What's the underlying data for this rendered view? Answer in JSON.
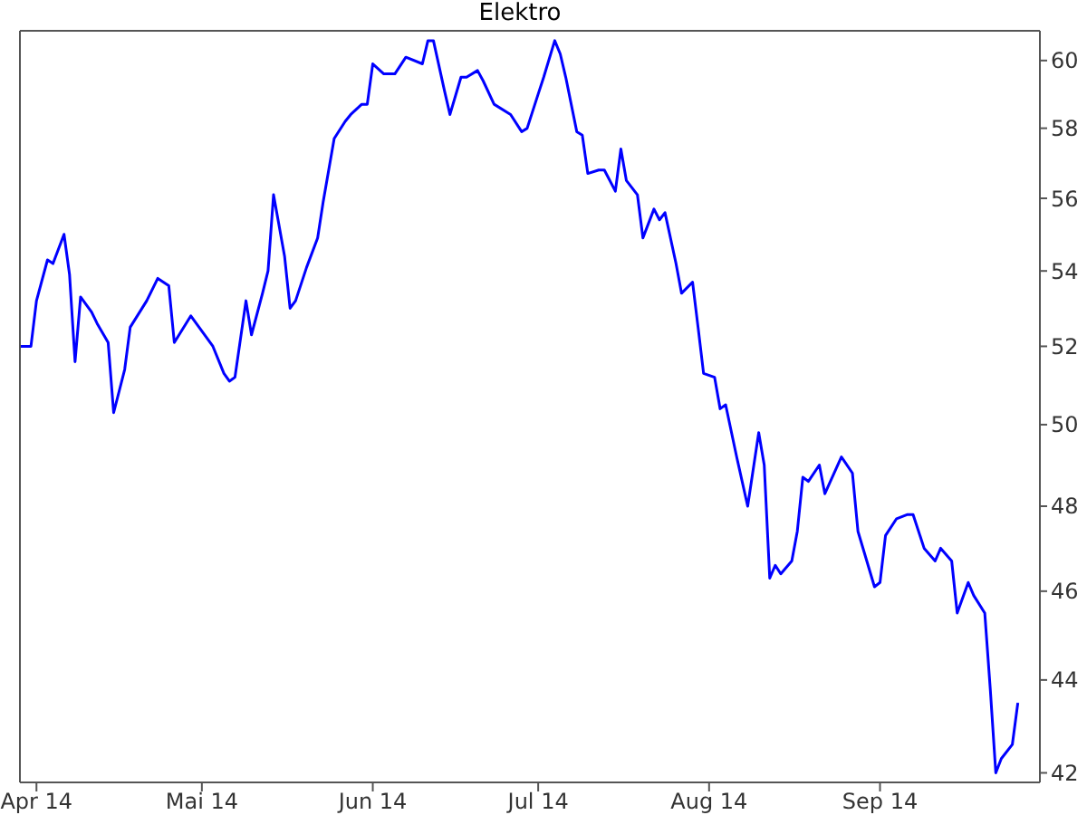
{
  "chart_data": {
    "type": "line",
    "title": "Elektro",
    "x": [
      "2014-03-29",
      "2014-03-31",
      "2014-04-01",
      "2014-04-03",
      "2014-04-04",
      "2014-04-06",
      "2014-04-07",
      "2014-04-08",
      "2014-04-09",
      "2014-04-11",
      "2014-04-12",
      "2014-04-14",
      "2014-04-15",
      "2014-04-17",
      "2014-04-18",
      "2014-04-21",
      "2014-04-23",
      "2014-04-25",
      "2014-04-26",
      "2014-04-29",
      "2014-05-03",
      "2014-05-05",
      "2014-05-06",
      "2014-05-07",
      "2014-05-09",
      "2014-05-10",
      "2014-05-12",
      "2014-05-13",
      "2014-05-14",
      "2014-05-16",
      "2014-05-17",
      "2014-05-18",
      "2014-05-20",
      "2014-05-22",
      "2014-05-23",
      "2014-05-25",
      "2014-05-27",
      "2014-05-28",
      "2014-05-30",
      "2014-05-31",
      "2014-06-01",
      "2014-06-03",
      "2014-06-05",
      "2014-06-07",
      "2014-06-10",
      "2014-06-11",
      "2014-06-12",
      "2014-06-14",
      "2014-06-15",
      "2014-06-17",
      "2014-06-18",
      "2014-06-20",
      "2014-06-21",
      "2014-06-23",
      "2014-06-26",
      "2014-06-28",
      "2014-06-29",
      "2014-07-01",
      "2014-07-02",
      "2014-07-04",
      "2014-07-05",
      "2014-07-06",
      "2014-07-08",
      "2014-07-09",
      "2014-07-10",
      "2014-07-12",
      "2014-07-13",
      "2014-07-15",
      "2014-07-16",
      "2014-07-17",
      "2014-07-19",
      "2014-07-20",
      "2014-07-22",
      "2014-07-23",
      "2014-07-24",
      "2014-07-26",
      "2014-07-27",
      "2014-07-29",
      "2014-07-30",
      "2014-07-31",
      "2014-08-02",
      "2014-08-03",
      "2014-08-04",
      "2014-08-06",
      "2014-08-08",
      "2014-08-10",
      "2014-08-11",
      "2014-08-12",
      "2014-08-13",
      "2014-08-14",
      "2014-08-16",
      "2014-08-17",
      "2014-08-18",
      "2014-08-19",
      "2014-08-21",
      "2014-08-22",
      "2014-08-25",
      "2014-08-27",
      "2014-08-28",
      "2014-08-31",
      "2014-09-01",
      "2014-09-02",
      "2014-09-04",
      "2014-09-06",
      "2014-09-07",
      "2014-09-09",
      "2014-09-11",
      "2014-09-12",
      "2014-09-14",
      "2014-09-15",
      "2014-09-17",
      "2014-09-18",
      "2014-09-20",
      "2014-09-21",
      "2014-09-22",
      "2014-09-23",
      "2014-09-25",
      "2014-09-26"
    ],
    "series": [
      {
        "color": "#0000ff",
        "values": [
          52.0,
          52.0,
          53.2,
          54.3,
          54.2,
          55.0,
          53.9,
          51.6,
          53.3,
          52.9,
          52.6,
          52.1,
          50.3,
          51.4,
          52.5,
          53.2,
          53.8,
          53.6,
          52.1,
          52.8,
          52.0,
          51.3,
          51.1,
          51.2,
          53.2,
          52.3,
          53.4,
          54.0,
          56.1,
          54.4,
          53.0,
          53.2,
          54.1,
          54.9,
          55.9,
          57.7,
          58.2,
          58.4,
          58.7,
          58.7,
          59.9,
          59.6,
          59.6,
          60.1,
          59.9,
          60.6,
          60.6,
          59.1,
          58.4,
          59.5,
          59.5,
          59.7,
          59.4,
          58.7,
          58.4,
          57.9,
          58.0,
          59.0,
          59.5,
          60.6,
          60.2,
          59.5,
          57.9,
          57.8,
          56.7,
          56.8,
          56.8,
          56.2,
          57.4,
          56.5,
          56.1,
          54.9,
          55.7,
          55.4,
          55.6,
          54.2,
          53.4,
          53.7,
          52.5,
          51.3,
          51.2,
          50.4,
          50.5,
          49.2,
          48.0,
          49.8,
          49.0,
          46.3,
          46.6,
          46.4,
          46.7,
          47.4,
          48.7,
          48.6,
          49.0,
          48.3,
          49.2,
          48.8,
          47.4,
          46.1,
          46.2,
          47.3,
          47.7,
          47.8,
          47.8,
          47.0,
          46.7,
          47.0,
          46.7,
          45.5,
          46.2,
          45.9,
          45.5,
          43.8,
          42.0,
          42.3,
          42.6,
          43.5
        ]
      }
    ],
    "xlim": [
      "2014-03-29",
      "2014-09-30"
    ],
    "xticks": [
      {
        "value": "2014-04-01",
        "label": "Apr 14"
      },
      {
        "value": "2014-05-01",
        "label": "Mai 14"
      },
      {
        "value": "2014-06-01",
        "label": "Jun 14"
      },
      {
        "value": "2014-07-01",
        "label": "Jul 14"
      },
      {
        "value": "2014-08-01",
        "label": "Aug 14"
      },
      {
        "value": "2014-09-01",
        "label": "Sep 14"
      }
    ],
    "ylim": [
      41.8,
      60.9
    ],
    "yticks": [
      42,
      44,
      46,
      48,
      50,
      52,
      54,
      56,
      58,
      60
    ],
    "log": "y",
    "grid": false,
    "legend": false,
    "marker": "none",
    "line_style": "solid"
  }
}
